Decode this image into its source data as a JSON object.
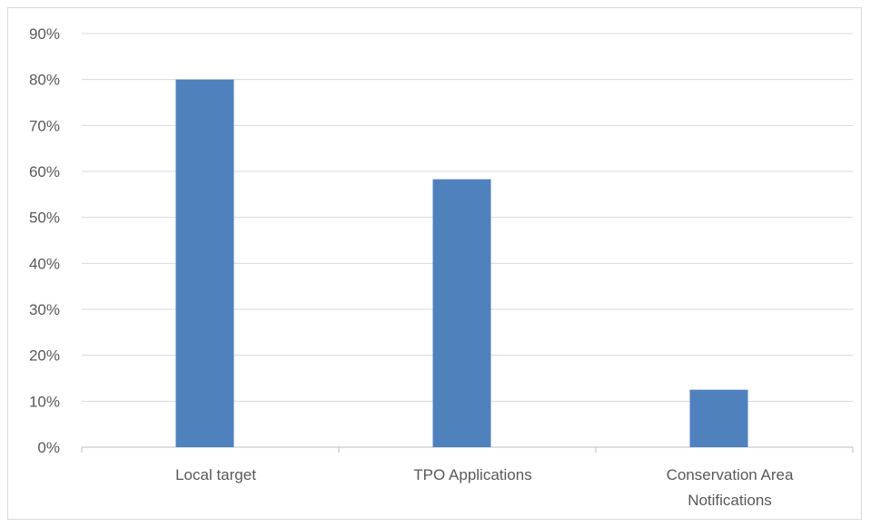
{
  "chart_data": {
    "type": "bar",
    "categories": [
      [
        "Local target"
      ],
      [
        "TPO Applications"
      ],
      [
        "Conservation Area",
        "Notifications"
      ]
    ],
    "values": [
      0.8,
      0.583,
      0.125
    ],
    "y_ticks": [
      "0%",
      "10%",
      "20%",
      "30%",
      "40%",
      "50%",
      "60%",
      "70%",
      "80%",
      "90%"
    ],
    "ylim": [
      0,
      0.9
    ],
    "grid": true,
    "legend": "none",
    "colors": {
      "bar": "#4f81bd",
      "grid": "#d9d9d9",
      "axis": "#bfbfbf",
      "text": "#595959"
    }
  }
}
